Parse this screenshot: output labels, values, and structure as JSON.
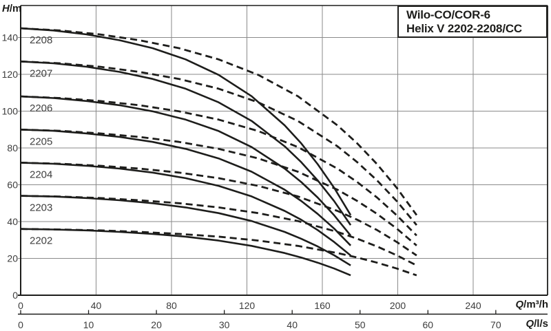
{
  "title": {
    "line1": "Wilo-CO/COR-6",
    "line2": "Helix V 2202-2208/CC"
  },
  "axes": {
    "y_unit_sym": "H",
    "y_unit_rest": "/m",
    "x1_unit_sym": "Q",
    "x1_unit_rest": "/m³/h",
    "x2_unit_sym": "Q",
    "x2_unit_rest": "/l/s"
  },
  "colors": {
    "background": "#ffffff",
    "curve": "#1d1d1b",
    "grid": "#8a8a8a",
    "axis": "#1d1d1b",
    "tick_text": "#3c3c3c",
    "curve_label_text": "#3f3f3f",
    "title_text": "#1d1d1b"
  },
  "chart_data": {
    "type": "line",
    "title": "Wilo-CO/COR-6 Helix V 2202-2208/CC",
    "ylabel": "H/m",
    "xlabel": "Q/m³/h",
    "xlabel_secondary": "Q/l/s",
    "ylim": [
      0,
      157
    ],
    "xlim": [
      0,
      280
    ],
    "grid": true,
    "legend_position": "none",
    "y_ticks": [
      0,
      20,
      40,
      60,
      80,
      100,
      120,
      140
    ],
    "x1_ticks": [
      0,
      40,
      80,
      120,
      160,
      200,
      240
    ],
    "x2_ticks": [
      0,
      10,
      20,
      30,
      40,
      50,
      60,
      70
    ],
    "x2_to_x1_factor": 3.6,
    "q_solid": [
      0,
      17.5,
      35,
      52.5,
      70,
      87.5,
      105,
      122.5,
      140,
      148.8,
      157.5,
      166.3,
      175
    ],
    "q_dashed": [
      0,
      21,
      42,
      63,
      84,
      105,
      126,
      147,
      168,
      178.5,
      189,
      199.5,
      210
    ],
    "pumps": [
      {
        "label": "2202",
        "h": [
          36.0,
          35.7,
          35.2,
          34.4,
          33.3,
          31.8,
          29.7,
          26.8,
          22.9,
          20.5,
          17.7,
          14.5,
          10.8
        ]
      },
      {
        "label": "2203",
        "h": [
          54.0,
          53.6,
          52.8,
          51.6,
          50.0,
          47.7,
          44.6,
          40.3,
          34.4,
          30.7,
          26.5,
          21.7,
          16.2
        ]
      },
      {
        "label": "2204",
        "h": [
          72.0,
          71.4,
          70.3,
          68.8,
          66.6,
          63.6,
          59.4,
          53.7,
          45.8,
          41.0,
          35.4,
          28.9,
          21.6
        ]
      },
      {
        "label": "2205",
        "h": [
          90.0,
          89.3,
          87.9,
          86.0,
          83.3,
          79.5,
          74.3,
          67.1,
          57.3,
          51.2,
          44.2,
          36.2,
          27.0
        ]
      },
      {
        "label": "2206",
        "h": [
          108.0,
          107.1,
          105.5,
          103.2,
          99.9,
          95.4,
          89.2,
          80.5,
          68.8,
          61.5,
          53.1,
          43.4,
          32.4
        ]
      },
      {
        "label": "2207",
        "h": [
          127.0,
          126.0,
          124.1,
          121.3,
          117.5,
          112.2,
          104.8,
          94.7,
          80.9,
          72.3,
          62.4,
          51.1,
          38.1
        ]
      },
      {
        "label": "2208",
        "h": [
          145.0,
          143.8,
          141.7,
          138.5,
          134.2,
          128.1,
          119.7,
          108.1,
          92.3,
          82.5,
          71.2,
          58.3,
          43.5
        ]
      }
    ]
  }
}
